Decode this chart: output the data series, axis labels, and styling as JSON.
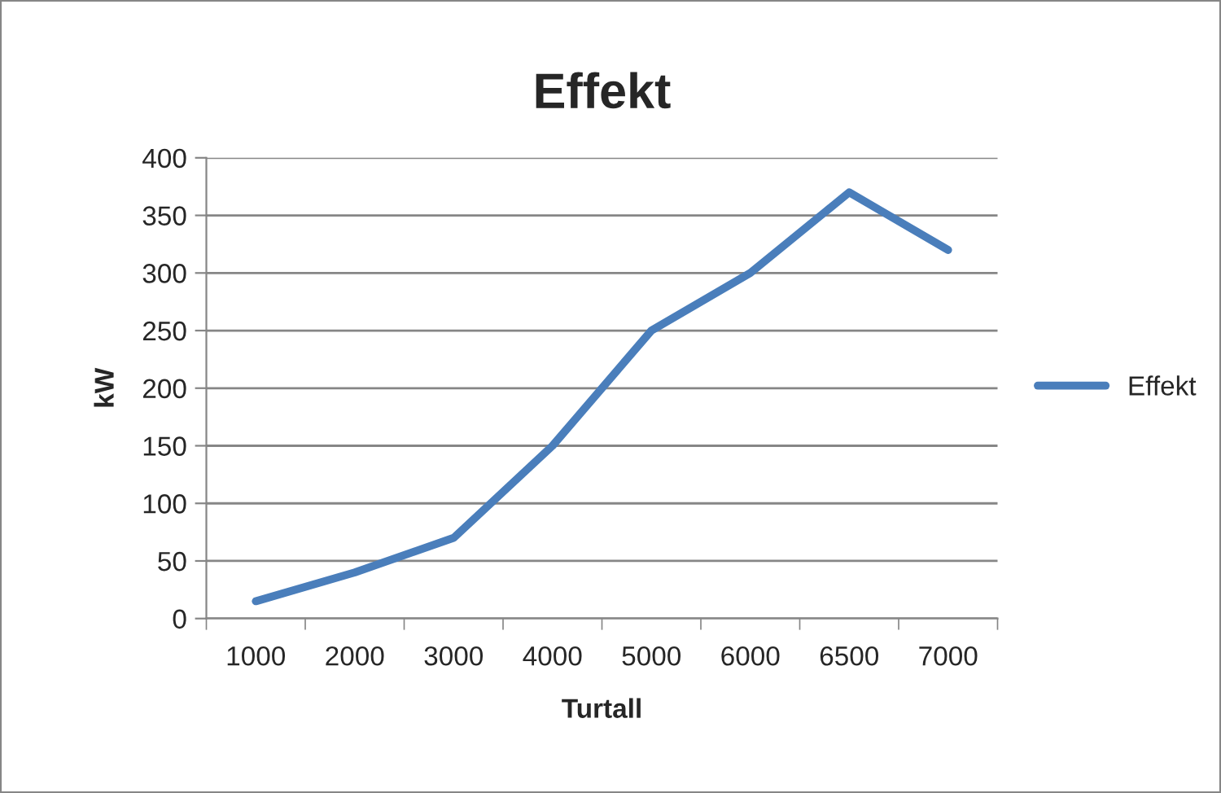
{
  "chart_data": {
    "type": "line",
    "title": "Effekt",
    "xlabel": "Turtall",
    "ylabel": "kW",
    "categories": [
      "1000",
      "2000",
      "3000",
      "4000",
      "5000",
      "6000",
      "6500",
      "7000"
    ],
    "series": [
      {
        "name": "Effekt",
        "color": "#4a7ebb",
        "values": [
          15,
          40,
          70,
          150,
          250,
          300,
          370,
          320
        ]
      }
    ],
    "ylim": [
      0,
      400
    ],
    "yticks": [
      0,
      50,
      100,
      150,
      200,
      250,
      300,
      350,
      400
    ],
    "grid": "y",
    "legend": "right",
    "marker": "none",
    "line_style": "solid"
  }
}
